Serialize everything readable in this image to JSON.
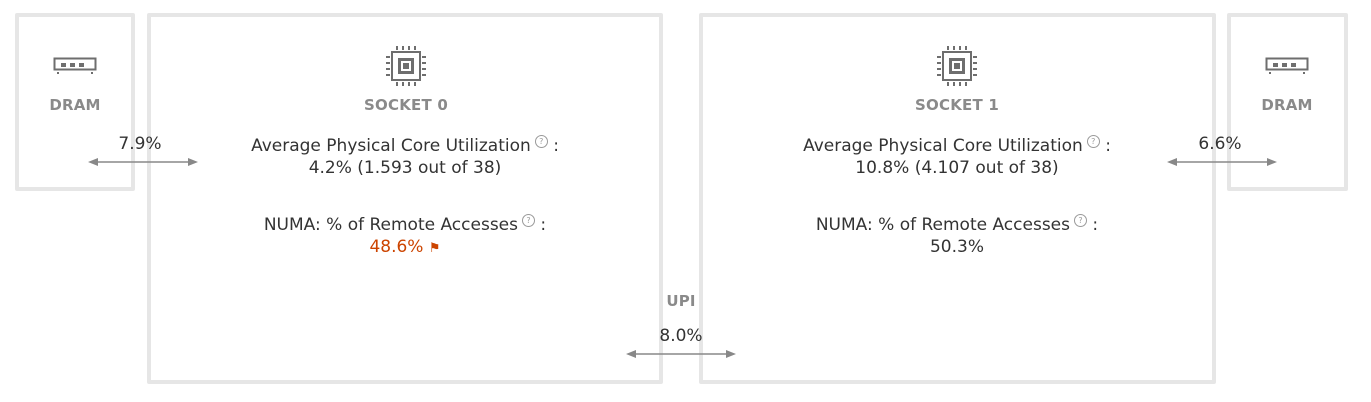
{
  "dram_left": {
    "label": "DRAM",
    "icon": "memory-icon"
  },
  "dram_right": {
    "label": "DRAM",
    "icon": "memory-icon"
  },
  "socket0": {
    "label": "SOCKET 0",
    "icon": "cpu-chip-icon",
    "core_util_label": "Average Physical Core Utilization",
    "core_util_value": "4.2% (1.593 out of 38)",
    "numa_label": "NUMA: % of Remote Accesses",
    "numa_value": "48.6%",
    "numa_flag": "⚑"
  },
  "socket1": {
    "label": "SOCKET 1",
    "icon": "cpu-chip-icon",
    "core_util_label": "Average Physical Core Utilization",
    "core_util_value": "10.8% (4.107 out of 38)",
    "numa_label": "NUMA: % of Remote Accesses",
    "numa_value": "50.3%"
  },
  "links": {
    "dram0_socket0": "7.9%",
    "socket1_dram1": "6.6%",
    "upi_label": "UPI",
    "upi_value": "8.0%"
  },
  "colors": {
    "border": "#e6e6e6",
    "accent_warn": "#cc4400",
    "muted": "#8a8a8a"
  },
  "help_glyph": "?",
  "colon": ":"
}
